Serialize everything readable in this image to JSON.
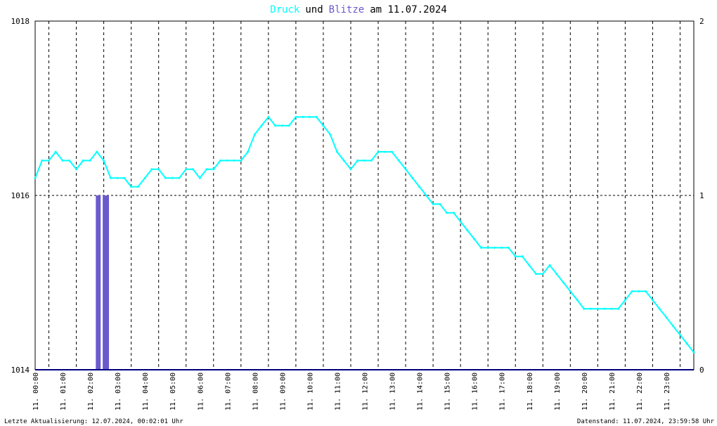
{
  "title": {
    "word1": "Druck",
    "word2": "und",
    "word3": "Blitze",
    "word4": "am 11.07.2024",
    "color1": "#00ffff",
    "color3": "#6a5acd"
  },
  "footer": {
    "left": "Letzte Aktualisierung: 12.07.2024, 00:02:01 Uhr",
    "right": "Datenstand: 11.07.2024, 23:59:58 Uhr"
  },
  "chart_data": {
    "type": "line",
    "x_tick_labels": [
      "11. 00:00",
      "11. 01:00",
      "11. 02:00",
      "11. 03:00",
      "11. 04:00",
      "11. 05:00",
      "11. 06:00",
      "11. 07:00",
      "11. 08:00",
      "11. 09:00",
      "11. 10:00",
      "11. 11:00",
      "11. 12:00",
      "11. 13:00",
      "11. 14:00",
      "11. 15:00",
      "11. 16:00",
      "11. 17:00",
      "11. 18:00",
      "11. 19:00",
      "11. 20:00",
      "11. 21:00",
      "11. 22:00",
      "11. 23:00"
    ],
    "y_left": {
      "ticks": [
        "1018",
        "1016",
        "1014"
      ],
      "range": [
        1014,
        1018
      ]
    },
    "y_right": {
      "ticks": [
        "2",
        "1",
        "0"
      ],
      "range": [
        0,
        2
      ]
    },
    "x_range_hours": [
      0,
      24
    ],
    "grid": true,
    "series": [
      {
        "name": "Druck",
        "axis": "left",
        "color": "#00ffff",
        "points": [
          [
            0.0,
            1016.2
          ],
          [
            0.25,
            1016.4
          ],
          [
            0.5,
            1016.4
          ],
          [
            0.75,
            1016.5
          ],
          [
            1.0,
            1016.4
          ],
          [
            1.25,
            1016.4
          ],
          [
            1.5,
            1016.3
          ],
          [
            1.75,
            1016.4
          ],
          [
            2.0,
            1016.4
          ],
          [
            2.25,
            1016.5
          ],
          [
            2.5,
            1016.4
          ],
          [
            2.75,
            1016.2
          ],
          [
            3.0,
            1016.2
          ],
          [
            3.25,
            1016.2
          ],
          [
            3.5,
            1016.1
          ],
          [
            3.75,
            1016.1
          ],
          [
            4.0,
            1016.2
          ],
          [
            4.25,
            1016.3
          ],
          [
            4.5,
            1016.3
          ],
          [
            4.75,
            1016.2
          ],
          [
            5.0,
            1016.2
          ],
          [
            5.25,
            1016.2
          ],
          [
            5.5,
            1016.3
          ],
          [
            5.75,
            1016.3
          ],
          [
            6.0,
            1016.2
          ],
          [
            6.25,
            1016.3
          ],
          [
            6.5,
            1016.3
          ],
          [
            6.75,
            1016.4
          ],
          [
            7.0,
            1016.4
          ],
          [
            7.25,
            1016.4
          ],
          [
            7.5,
            1016.4
          ],
          [
            7.75,
            1016.5
          ],
          [
            8.0,
            1016.7
          ],
          [
            8.25,
            1016.8
          ],
          [
            8.5,
            1016.9
          ],
          [
            8.75,
            1016.8
          ],
          [
            9.0,
            1016.8
          ],
          [
            9.25,
            1016.8
          ],
          [
            9.5,
            1016.9
          ],
          [
            9.75,
            1016.9
          ],
          [
            10.0,
            1016.9
          ],
          [
            10.25,
            1016.9
          ],
          [
            10.5,
            1016.8
          ],
          [
            10.75,
            1016.7
          ],
          [
            11.0,
            1016.5
          ],
          [
            11.25,
            1016.4
          ],
          [
            11.5,
            1016.3
          ],
          [
            11.75,
            1016.4
          ],
          [
            12.0,
            1016.4
          ],
          [
            12.25,
            1016.4
          ],
          [
            12.5,
            1016.5
          ],
          [
            12.75,
            1016.5
          ],
          [
            13.0,
            1016.5
          ],
          [
            13.25,
            1016.4
          ],
          [
            13.5,
            1016.3
          ],
          [
            13.75,
            1016.2
          ],
          [
            14.0,
            1016.1
          ],
          [
            14.25,
            1016.0
          ],
          [
            14.5,
            1015.9
          ],
          [
            14.75,
            1015.9
          ],
          [
            15.0,
            1015.8
          ],
          [
            15.25,
            1015.8
          ],
          [
            15.5,
            1015.7
          ],
          [
            15.75,
            1015.6
          ],
          [
            16.0,
            1015.5
          ],
          [
            16.25,
            1015.4
          ],
          [
            16.5,
            1015.4
          ],
          [
            16.75,
            1015.4
          ],
          [
            17.0,
            1015.4
          ],
          [
            17.25,
            1015.4
          ],
          [
            17.5,
            1015.3
          ],
          [
            17.75,
            1015.3
          ],
          [
            18.0,
            1015.2
          ],
          [
            18.25,
            1015.1
          ],
          [
            18.5,
            1015.1
          ],
          [
            18.75,
            1015.2
          ],
          [
            19.0,
            1015.1
          ],
          [
            19.25,
            1015.0
          ],
          [
            19.5,
            1014.9
          ],
          [
            19.75,
            1014.8
          ],
          [
            20.0,
            1014.7
          ],
          [
            20.25,
            1014.7
          ],
          [
            20.5,
            1014.7
          ],
          [
            20.75,
            1014.7
          ],
          [
            21.0,
            1014.7
          ],
          [
            21.25,
            1014.7
          ],
          [
            21.5,
            1014.8
          ],
          [
            21.75,
            1014.9
          ],
          [
            22.0,
            1014.9
          ],
          [
            22.25,
            1014.9
          ],
          [
            22.5,
            1014.8
          ],
          [
            22.75,
            1014.7
          ],
          [
            23.0,
            1014.6
          ],
          [
            23.25,
            1014.5
          ],
          [
            23.5,
            1014.4
          ],
          [
            23.75,
            1014.3
          ],
          [
            24.0,
            1014.2
          ]
        ]
      },
      {
        "name": "Blitze",
        "axis": "right",
        "color": "#6a5acd",
        "bars": [
          [
            2.25,
            1
          ],
          [
            2.3,
            1
          ],
          [
            2.35,
            1
          ],
          [
            2.5,
            1
          ],
          [
            2.55,
            1
          ],
          [
            2.6,
            1
          ],
          [
            2.65,
            1
          ]
        ]
      }
    ]
  }
}
